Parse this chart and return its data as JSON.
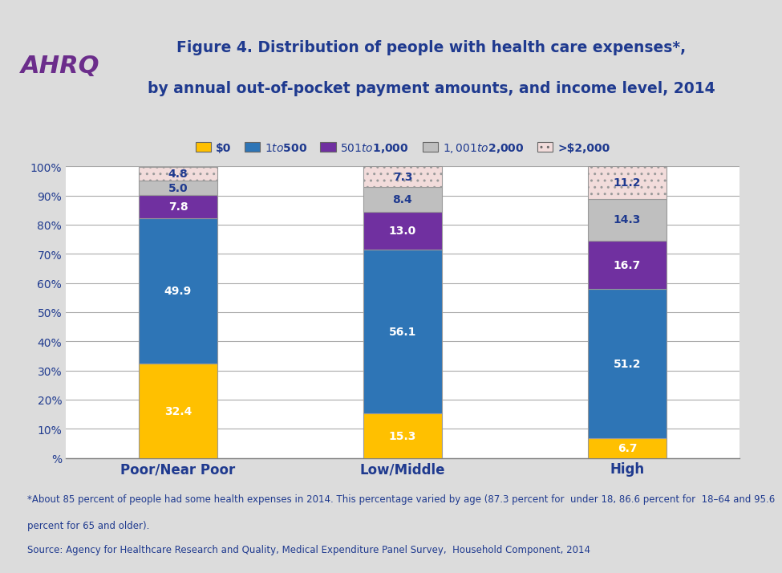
{
  "title_line1": "Figure 4. Distribution of people with health care expenses*,",
  "title_line2": "by annual out-of-pocket payment amounts, and income level, 2014",
  "title_color": "#1F3A8F",
  "categories": [
    "Poor/Near Poor",
    "Low/Middle",
    "High"
  ],
  "segments": [
    {
      "label": "$0",
      "color": "#FFC000",
      "hatch": "",
      "edgecolor": "#999999",
      "values": [
        32.4,
        15.3,
        6.7
      ]
    },
    {
      "label": "$1 to $500",
      "color": "#2E75B6",
      "hatch": "",
      "edgecolor": "#999999",
      "values": [
        49.9,
        56.1,
        51.2
      ]
    },
    {
      "label": "$501 to $1,000",
      "color": "#7030A0",
      "hatch": "",
      "edgecolor": "#999999",
      "values": [
        7.8,
        13.0,
        16.7
      ]
    },
    {
      "label": "$1,001 to $2,000",
      "color": "#BFBFBF",
      "hatch": "",
      "edgecolor": "#999999",
      "values": [
        5.0,
        8.4,
        14.3
      ]
    },
    {
      "label": ">$2,000",
      "color": "#F2DCDB",
      "hatch": "..",
      "edgecolor": "#999999",
      "values": [
        4.8,
        7.3,
        11.2
      ]
    }
  ],
  "yticks": [
    0,
    10,
    20,
    30,
    40,
    50,
    60,
    70,
    80,
    90,
    100
  ],
  "ytick_labels": [
    "%",
    "10%",
    "20%",
    "30%",
    "40%",
    "50%",
    "60%",
    "70%",
    "80%",
    "90%",
    "100%"
  ],
  "bar_width": 0.35,
  "text_color_white": "#FFFFFF",
  "text_color_dark": "#1F3A8F",
  "footnote_line1": "*About 85 percent of people had some health expenses in 2014. This percentage varied by age (87.3 percent for  under 18, 86.6 percent for  18–64 and 95.6",
  "footnote_line2": "percent for 65 and older).",
  "footnote_line3": "Source: Agency for Healthcare Research and Quality, Medical Expenditure Panel Survey,  Household Component, 2014",
  "bg_color": "#DCDCDC",
  "plot_bg_color": "#FFFFFF",
  "axis_label_color": "#1F3A8F",
  "legend_label_color": "#1F3A8F",
  "separator_color": "#808080",
  "grid_color": "#AAAAAA"
}
